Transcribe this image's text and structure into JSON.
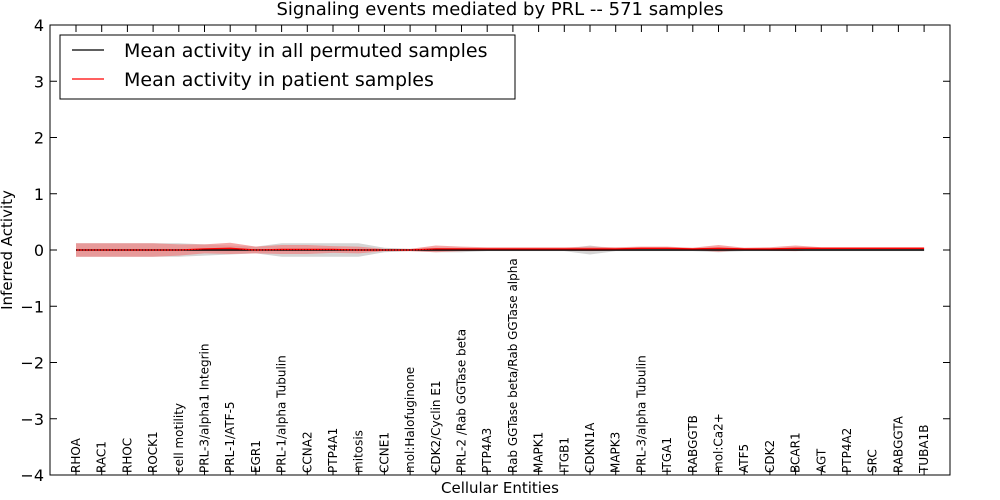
{
  "chart_data": {
    "type": "line",
    "title": "Signaling events mediated by PRL -- 571 samples",
    "xlabel": "Cellular Entities",
    "ylabel": "Inferred Activity",
    "ylim": [
      -4,
      4
    ],
    "yticks": [
      -4,
      -3,
      -2,
      -1,
      0,
      1,
      2,
      3,
      4
    ],
    "ytick_labels": [
      "−4",
      "−3",
      "−2",
      "−1",
      "0",
      "1",
      "2",
      "3",
      "4"
    ],
    "legend_position": "top-left",
    "categories": [
      "RHOA",
      "RAC1",
      "RHOC",
      "ROCK1",
      "cell motility",
      "PRL-3/alpha1 Integrin",
      "PRL-1/ATF-5",
      "EGR1",
      "PRL-1/alpha Tubulin",
      "CCNA2",
      "PTP4A1",
      "mitosis",
      "CCNE1",
      "mol:Halofuginone",
      "CDK2/Cyclin E1",
      "PRL-2 /Rab GGTase beta",
      "PTP4A3",
      "Rab GGTase beta/Rab GGTase alpha",
      "MAPK1",
      "ITGB1",
      "CDKN1A",
      "MAPK3",
      "PRL-3/alpha Tubulin",
      "ITGA1",
      "RABGGTB",
      "mol:Ca2+",
      "ATF5",
      "CDK2",
      "BCAR1",
      "AGT",
      "PTP4A2",
      "SRC",
      "RABGGTA",
      "TUBA1B"
    ],
    "series": [
      {
        "name": "Mean activity in all permuted samples",
        "color": "#000000",
        "band_color": "#b0b0b0",
        "values": [
          0.0,
          0.0,
          0.0,
          0.0,
          0.0,
          0.0,
          0.0,
          0.0,
          0.0,
          0.0,
          0.0,
          0.0,
          0.0,
          0.0,
          0.0,
          0.0,
          0.0,
          0.0,
          0.0,
          0.0,
          0.0,
          0.0,
          0.0,
          0.0,
          0.0,
          0.0,
          0.0,
          0.0,
          0.0,
          0.0,
          0.0,
          0.0,
          0.0,
          0.0
        ],
        "band": [
          0.12,
          0.12,
          0.12,
          0.12,
          0.12,
          0.1,
          0.08,
          0.06,
          0.12,
          0.12,
          0.12,
          0.12,
          0.04,
          0.02,
          0.04,
          0.04,
          0.02,
          0.02,
          0.02,
          0.02,
          0.08,
          0.02,
          0.02,
          0.02,
          0.02,
          0.04,
          0.02,
          0.02,
          0.02,
          0.02,
          0.02,
          0.02,
          0.02,
          0.02
        ]
      },
      {
        "name": "Mean activity in patient samples",
        "color": "#ff0000",
        "band_color": "#f08080",
        "values": [
          0.0,
          0.0,
          0.0,
          0.0,
          0.0,
          0.02,
          0.03,
          0.0,
          0.01,
          0.01,
          0.01,
          0.0,
          0.0,
          0.0,
          0.02,
          0.02,
          0.02,
          0.02,
          0.02,
          0.02,
          0.02,
          0.02,
          0.03,
          0.03,
          0.02,
          0.03,
          0.02,
          0.02,
          0.03,
          0.03,
          0.03,
          0.03,
          0.03,
          0.03
        ],
        "band": [
          0.12,
          0.12,
          0.12,
          0.12,
          0.1,
          0.08,
          0.1,
          0.06,
          0.08,
          0.08,
          0.06,
          0.06,
          0.02,
          0.02,
          0.06,
          0.04,
          0.03,
          0.03,
          0.03,
          0.03,
          0.04,
          0.03,
          0.03,
          0.03,
          0.02,
          0.06,
          0.02,
          0.03,
          0.05,
          0.02,
          0.02,
          0.02,
          0.02,
          0.02
        ]
      }
    ]
  }
}
